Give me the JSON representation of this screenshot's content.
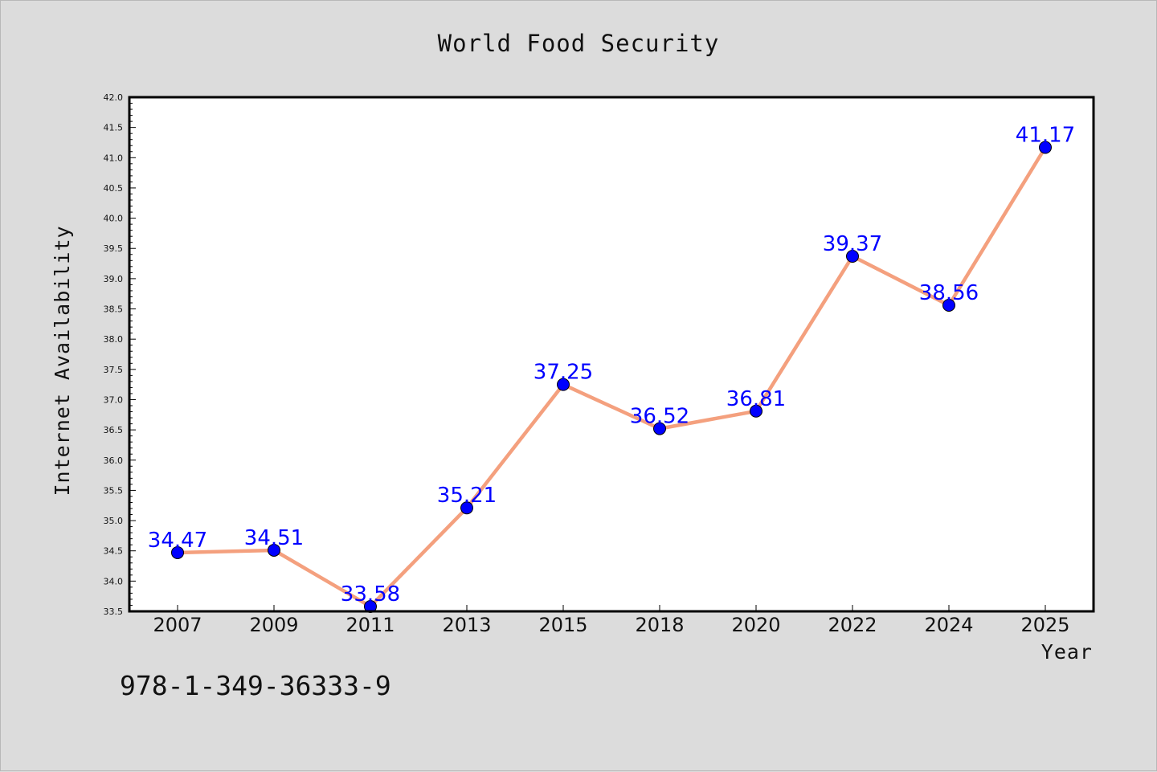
{
  "chart_data": {
    "type": "line",
    "title": "World Food Security",
    "xlabel": "Year",
    "ylabel": "Internet Availability",
    "categories": [
      "2007",
      "2009",
      "2011",
      "2013",
      "2015",
      "2018",
      "2020",
      "2022",
      "2024",
      "2025"
    ],
    "series": [
      {
        "values": [
          34.47,
          34.51,
          33.58,
          35.21,
          37.25,
          36.52,
          36.81,
          39.37,
          38.56,
          41.17
        ],
        "labels": [
          "34.47",
          "34.51",
          "33.58",
          "35.21",
          "37.25",
          "36.52",
          "36.81",
          "39.37",
          "38.56",
          "41.17"
        ],
        "line_color": "#f4a07e",
        "marker_color": "#0000ff"
      }
    ],
    "ylim": [
      33.5,
      42.0
    ],
    "yticks": [
      "33.5",
      "34.0",
      "34.5",
      "35.0",
      "35.5",
      "36.0",
      "36.5",
      "37.0",
      "37.5",
      "38.0",
      "38.5",
      "39.0",
      "39.5",
      "40.0",
      "40.5",
      "41.0",
      "41.5",
      "42.0"
    ],
    "grid": false,
    "legend": "none",
    "annotation": "978-1-349-36333-9"
  }
}
